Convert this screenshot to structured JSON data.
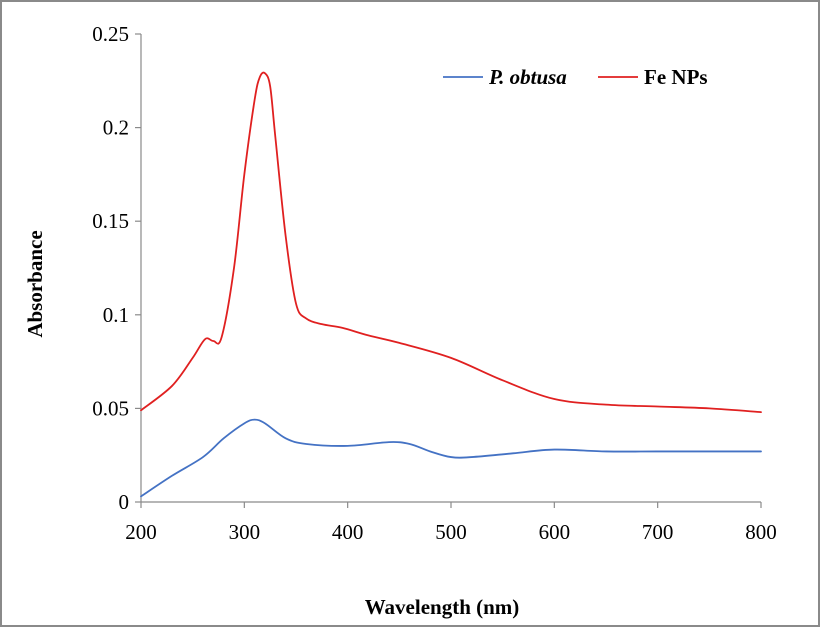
{
  "chart_data": {
    "type": "line",
    "xlabel": "Wavelength (nm)",
    "ylabel": "Absorbance",
    "xlim": [
      200,
      800
    ],
    "ylim": [
      0,
      0.25
    ],
    "xticks": [
      "200",
      "300",
      "400",
      "500",
      "600",
      "700",
      "800"
    ],
    "yticks": [
      "0",
      "0.05",
      "0.1",
      "0.15",
      "0.2",
      "0.25"
    ],
    "grid": false,
    "legend_position": "top-right",
    "series": [
      {
        "name": "P. obtusa",
        "color": "#4472c4",
        "x": [
          200,
          230,
          260,
          280,
          300,
          310,
          320,
          340,
          360,
          400,
          440,
          460,
          480,
          500,
          520,
          560,
          600,
          650,
          700,
          750,
          800
        ],
        "y": [
          0.003,
          0.014,
          0.024,
          0.034,
          0.042,
          0.044,
          0.042,
          0.034,
          0.031,
          0.03,
          0.032,
          0.031,
          0.027,
          0.024,
          0.024,
          0.026,
          0.028,
          0.027,
          0.027,
          0.027,
          0.027
        ]
      },
      {
        "name": "Fe NPs",
        "color": "#e02020",
        "x": [
          200,
          230,
          250,
          262,
          270,
          278,
          290,
          300,
          310,
          315,
          320,
          325,
          330,
          340,
          350,
          360,
          375,
          395,
          420,
          450,
          500,
          550,
          600,
          650,
          700,
          750,
          800
        ],
        "y": [
          0.049,
          0.062,
          0.077,
          0.087,
          0.086,
          0.088,
          0.125,
          0.175,
          0.215,
          0.227,
          0.229,
          0.222,
          0.195,
          0.142,
          0.106,
          0.098,
          0.095,
          0.093,
          0.089,
          0.085,
          0.077,
          0.065,
          0.055,
          0.052,
          0.051,
          0.05,
          0.048
        ]
      }
    ]
  }
}
